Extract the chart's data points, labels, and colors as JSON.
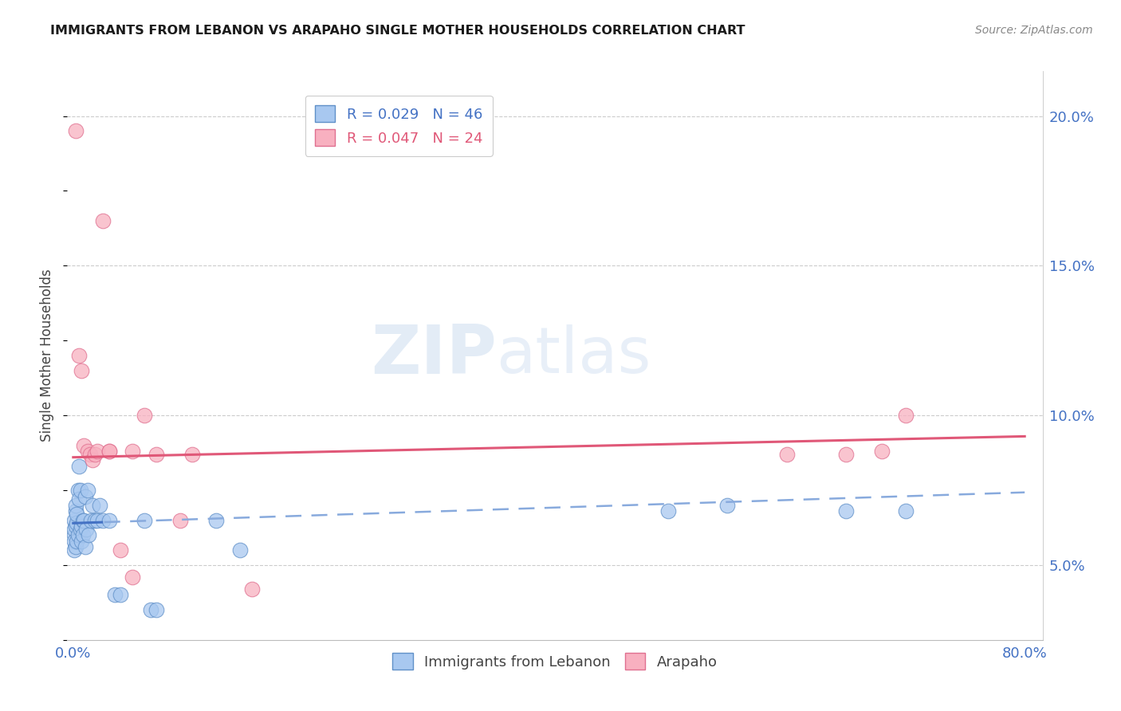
{
  "title": "IMMIGRANTS FROM LEBANON VS ARAPAHO SINGLE MOTHER HOUSEHOLDS CORRELATION CHART",
  "source": "Source: ZipAtlas.com",
  "ylabel": "Single Mother Households",
  "ytick_labels": [
    "5.0%",
    "10.0%",
    "15.0%",
    "20.0%"
  ],
  "ytick_vals": [
    0.05,
    0.1,
    0.15,
    0.2
  ],
  "xlim": [
    0.0,
    0.8
  ],
  "ylim": [
    0.025,
    0.215
  ],
  "legend1_label": "R = 0.029   N = 46",
  "legend2_label": "R = 0.047   N = 24",
  "blue_scatter_color": "#a8c8f0",
  "blue_scatter_edge": "#6090c8",
  "pink_scatter_color": "#f8b0c0",
  "pink_scatter_edge": "#e07090",
  "blue_line_solid_color": "#4472c4",
  "blue_line_dash_color": "#88aadd",
  "pink_line_color": "#e05878",
  "watermark_color": "#ccddf0",
  "tick_color": "#4472c4",
  "blue_x": [
    0.001,
    0.001,
    0.001,
    0.001,
    0.001,
    0.002,
    0.002,
    0.002,
    0.002,
    0.003,
    0.003,
    0.003,
    0.004,
    0.004,
    0.005,
    0.005,
    0.006,
    0.006,
    0.007,
    0.007,
    0.008,
    0.008,
    0.009,
    0.01,
    0.01,
    0.011,
    0.012,
    0.013,
    0.015,
    0.016,
    0.018,
    0.02,
    0.022,
    0.025,
    0.03,
    0.035,
    0.04,
    0.06,
    0.065,
    0.07,
    0.12,
    0.14,
    0.5,
    0.55,
    0.65,
    0.7
  ],
  "blue_y": [
    0.06,
    0.065,
    0.062,
    0.058,
    0.055,
    0.063,
    0.068,
    0.07,
    0.056,
    0.064,
    0.067,
    0.058,
    0.06,
    0.075,
    0.083,
    0.072,
    0.075,
    0.062,
    0.063,
    0.058,
    0.065,
    0.06,
    0.065,
    0.073,
    0.056,
    0.062,
    0.075,
    0.06,
    0.065,
    0.07,
    0.065,
    0.065,
    0.07,
    0.065,
    0.065,
    0.04,
    0.04,
    0.065,
    0.035,
    0.035,
    0.065,
    0.055,
    0.068,
    0.07,
    0.068,
    0.068
  ],
  "pink_x": [
    0.002,
    0.005,
    0.007,
    0.009,
    0.012,
    0.014,
    0.016,
    0.018,
    0.02,
    0.025,
    0.03,
    0.04,
    0.05,
    0.06,
    0.07,
    0.15,
    0.6,
    0.65,
    0.68,
    0.7,
    0.03,
    0.05,
    0.09,
    0.1
  ],
  "pink_y": [
    0.195,
    0.12,
    0.115,
    0.09,
    0.088,
    0.087,
    0.085,
    0.087,
    0.088,
    0.165,
    0.088,
    0.055,
    0.088,
    0.1,
    0.087,
    0.042,
    0.087,
    0.087,
    0.088,
    0.1,
    0.088,
    0.046,
    0.065,
    0.087
  ]
}
